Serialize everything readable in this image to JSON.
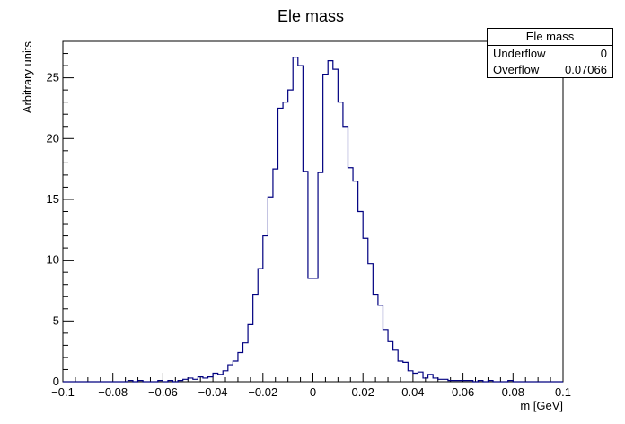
{
  "chart_data": {
    "type": "histogram",
    "title": "Ele mass",
    "xlabel": "m [GeV]",
    "ylabel": "Arbitrary units",
    "xlim": [
      -0.1,
      0.1
    ],
    "ylim": [
      0,
      28
    ],
    "bin_width": 0.002,
    "x_ticks": [
      "−0.1",
      "−0.08",
      "−0.06",
      "−0.04",
      "−0.02",
      "0",
      "0.02",
      "0.04",
      "0.06",
      "0.08",
      "0.1"
    ],
    "x_tick_values": [
      -0.1,
      -0.08,
      -0.06,
      -0.04,
      -0.02,
      0,
      0.02,
      0.04,
      0.06,
      0.08,
      0.1
    ],
    "y_ticks": [
      "0",
      "5",
      "10",
      "15",
      "20",
      "25"
    ],
    "y_tick_values": [
      0,
      5,
      10,
      15,
      20,
      25
    ],
    "line_color": "#000080",
    "bins": [
      [
        -0.1,
        0
      ],
      [
        -0.098,
        0
      ],
      [
        -0.096,
        0
      ],
      [
        -0.094,
        0
      ],
      [
        -0.092,
        0
      ],
      [
        -0.09,
        0
      ],
      [
        -0.088,
        0
      ],
      [
        -0.086,
        0
      ],
      [
        -0.084,
        0
      ],
      [
        -0.082,
        0
      ],
      [
        -0.08,
        0
      ],
      [
        -0.078,
        0
      ],
      [
        -0.076,
        0
      ],
      [
        -0.074,
        0.1
      ],
      [
        -0.072,
        0
      ],
      [
        -0.07,
        0.1
      ],
      [
        -0.068,
        0
      ],
      [
        -0.066,
        0
      ],
      [
        -0.064,
        0
      ],
      [
        -0.062,
        0.1
      ],
      [
        -0.06,
        0
      ],
      [
        -0.058,
        0.1
      ],
      [
        -0.056,
        0
      ],
      [
        -0.054,
        0.1
      ],
      [
        -0.052,
        0.2
      ],
      [
        -0.05,
        0.3
      ],
      [
        -0.048,
        0.2
      ],
      [
        -0.046,
        0.4
      ],
      [
        -0.044,
        0.3
      ],
      [
        -0.042,
        0.4
      ],
      [
        -0.04,
        0.7
      ],
      [
        -0.038,
        0.6
      ],
      [
        -0.036,
        0.9
      ],
      [
        -0.034,
        1.4
      ],
      [
        -0.032,
        1.7
      ],
      [
        -0.03,
        2.4
      ],
      [
        -0.028,
        3.2
      ],
      [
        -0.026,
        4.7
      ],
      [
        -0.024,
        7.2
      ],
      [
        -0.022,
        9.3
      ],
      [
        -0.02,
        12.0
      ],
      [
        -0.018,
        15.2
      ],
      [
        -0.016,
        17.5
      ],
      [
        -0.014,
        22.5
      ],
      [
        -0.012,
        23.0
      ],
      [
        -0.01,
        24.0
      ],
      [
        -0.008,
        26.7
      ],
      [
        -0.006,
        26.0
      ],
      [
        -0.004,
        17.3
      ],
      [
        -0.002,
        8.5
      ],
      [
        0.0,
        8.5
      ],
      [
        0.002,
        17.2
      ],
      [
        0.004,
        25.3
      ],
      [
        0.006,
        26.4
      ],
      [
        0.008,
        25.7
      ],
      [
        0.01,
        23.0
      ],
      [
        0.012,
        21.0
      ],
      [
        0.014,
        17.6
      ],
      [
        0.016,
        16.5
      ],
      [
        0.018,
        14.0
      ],
      [
        0.02,
        11.8
      ],
      [
        0.022,
        9.7
      ],
      [
        0.024,
        7.2
      ],
      [
        0.026,
        6.3
      ],
      [
        0.028,
        4.3
      ],
      [
        0.03,
        3.3
      ],
      [
        0.032,
        2.6
      ],
      [
        0.034,
        1.7
      ],
      [
        0.036,
        1.6
      ],
      [
        0.038,
        0.9
      ],
      [
        0.04,
        0.7
      ],
      [
        0.042,
        0.8
      ],
      [
        0.044,
        0.3
      ],
      [
        0.046,
        0.6
      ],
      [
        0.048,
        0.3
      ],
      [
        0.05,
        0.2
      ],
      [
        0.052,
        0.2
      ],
      [
        0.054,
        0.1
      ],
      [
        0.056,
        0.1
      ],
      [
        0.058,
        0.1
      ],
      [
        0.06,
        0.1
      ],
      [
        0.062,
        0.1
      ],
      [
        0.064,
        0
      ],
      [
        0.066,
        0.1
      ],
      [
        0.068,
        0
      ],
      [
        0.07,
        0.1
      ],
      [
        0.072,
        0
      ],
      [
        0.074,
        0
      ],
      [
        0.076,
        0
      ],
      [
        0.078,
        0.1
      ],
      [
        0.08,
        0
      ],
      [
        0.082,
        0
      ],
      [
        0.084,
        0
      ],
      [
        0.086,
        0
      ],
      [
        0.088,
        0
      ],
      [
        0.09,
        0
      ],
      [
        0.092,
        0
      ],
      [
        0.094,
        0
      ],
      [
        0.096,
        0
      ],
      [
        0.098,
        0
      ]
    ],
    "stats": {
      "title": "Ele mass",
      "rows": [
        {
          "label": "Underflow",
          "value": "0"
        },
        {
          "label": "Overflow",
          "value": "0.07066"
        }
      ]
    }
  }
}
